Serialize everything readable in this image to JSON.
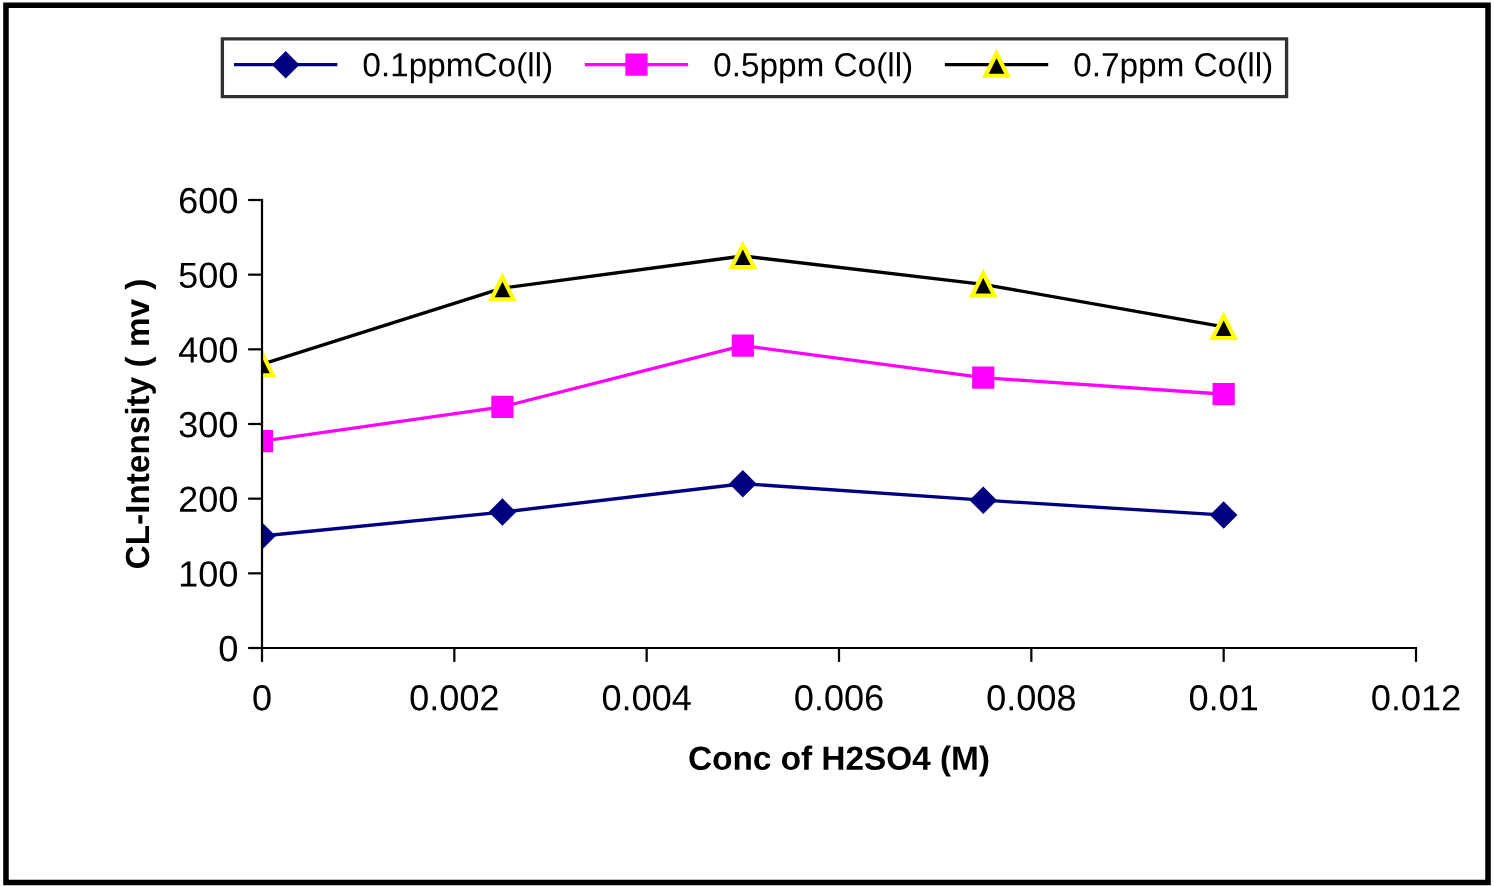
{
  "chart_data": {
    "type": "line",
    "xlabel": "Conc of H2SO4 (M)",
    "ylabel": "CL-Intensity ( mv )",
    "x": [
      0,
      0.0025,
      0.005,
      0.0075,
      0.01
    ],
    "series": [
      {
        "name": "0.1ppmCo(ll)",
        "color": "#000080",
        "marker": "diamond",
        "values": [
          150,
          182,
          220,
          198,
          178
        ]
      },
      {
        "name": "0.5ppm Co(ll)",
        "color": "#ff00ff",
        "marker": "square",
        "values": [
          277,
          323,
          405,
          362,
          340
        ]
      },
      {
        "name": "0.7ppm Co(ll)",
        "color": "#000000",
        "marker": "triangle",
        "values": [
          380,
          482,
          525,
          487,
          430
        ]
      }
    ],
    "xlim": [
      0,
      0.012
    ],
    "xticks": [
      0,
      0.002,
      0.004,
      0.006,
      0.008,
      0.01,
      0.012
    ],
    "ylim": [
      0,
      600
    ],
    "yticks": [
      0,
      100,
      200,
      300,
      400,
      500,
      600
    ],
    "grid": false,
    "legend": "top"
  }
}
